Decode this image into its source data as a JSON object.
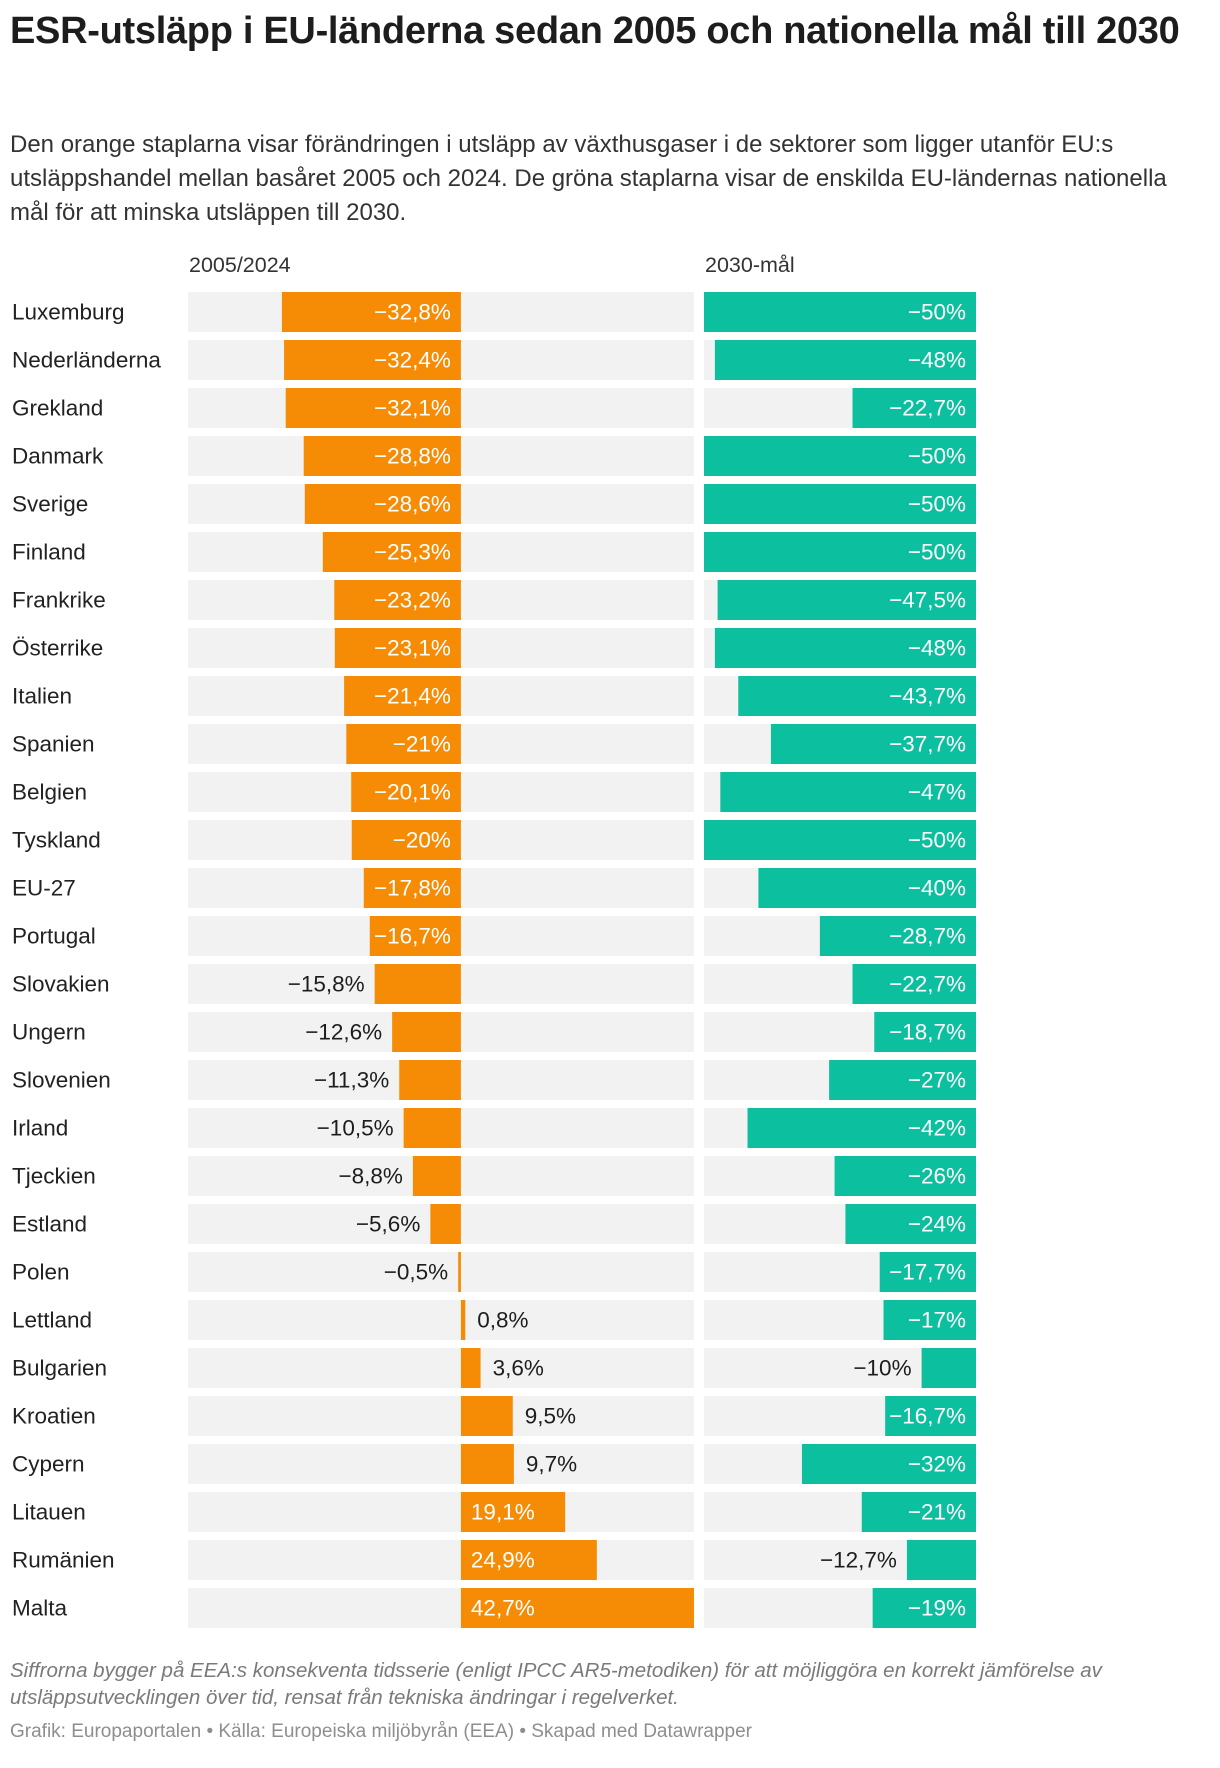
{
  "header": {
    "title": "ESR-utsläpp i EU-länderna sedan 2005 och nationella mål till 2030",
    "description": "Den orange staplarna visar förändringen i utsläpp av växthusgaser i de sektorer som ligger utanför EU:s utsläppshandel mellan basåret 2005 och 2024. De gröna staplarna visar de enskilda EU-ländernas nationella mål för att minska utsläppen till 2030."
  },
  "footer": {
    "note": "Siffrorna bygger på EEA:s konsekventa tidsserie (enligt IPCC AR5-metodiken) för att möjliggöra en korrekt jämförelse av utsläppsutvecklingen över tid, rensat från tekniska ändringar i regelverket.",
    "credits": "Grafik: Europaportalen • Källa: Europeiska miljöbyrån (EEA) • Skapad med Datawrapper"
  },
  "colors": {
    "change_bar": "#f68c06",
    "target_bar": "#0bbf9f",
    "track": "#f2f2f2",
    "label_inside": "#ffffff",
    "label_outside": "#1d1d1d"
  },
  "chart_data": {
    "type": "bar",
    "orientation": "horizontal",
    "categories": [
      "Luxemburg",
      "Nederländerna",
      "Grekland",
      "Danmark",
      "Sverige",
      "Finland",
      "Frankrike",
      "Österrike",
      "Italien",
      "Spanien",
      "Belgien",
      "Tyskland",
      "EU-27",
      "Portugal",
      "Slovakien",
      "Ungern",
      "Slovenien",
      "Irland",
      "Tjeckien",
      "Estland",
      "Polen",
      "Lettland",
      "Bulgarien",
      "Kroatien",
      "Cypern",
      "Litauen",
      "Rumänien",
      "Malta"
    ],
    "series": [
      {
        "name": "2005/2024",
        "unit": "%",
        "xlim": [
          -50,
          42.7
        ],
        "values": [
          -32.8,
          -32.4,
          -32.1,
          -28.8,
          -28.6,
          -25.3,
          -23.2,
          -23.1,
          -21.4,
          -21,
          -20.1,
          -20,
          -17.8,
          -16.7,
          -15.8,
          -12.6,
          -11.3,
          -10.5,
          -8.8,
          -5.6,
          -0.5,
          0.8,
          3.6,
          9.5,
          9.7,
          19.1,
          24.9,
          42.7
        ],
        "labels": [
          "−32,8%",
          "−32,4%",
          "−32,1%",
          "−28,8%",
          "−28,6%",
          "−25,3%",
          "−23,2%",
          "−23,1%",
          "−21,4%",
          "−21%",
          "−20,1%",
          "−20%",
          "−17,8%",
          "−16,7%",
          "−15,8%",
          "−12,6%",
          "−11,3%",
          "−10,5%",
          "−8,8%",
          "−5,6%",
          "−0,5%",
          "0,8%",
          "3,6%",
          "9,5%",
          "9,7%",
          "19,1%",
          "24,9%",
          "42,7%"
        ]
      },
      {
        "name": "2030-mål",
        "unit": "%",
        "xlim": [
          -50,
          0
        ],
        "values": [
          -50,
          -48,
          -22.7,
          -50,
          -50,
          -50,
          -47.5,
          -48,
          -43.7,
          -37.7,
          -47,
          -50,
          -40,
          -28.7,
          -22.7,
          -18.7,
          -27,
          -42,
          -26,
          -24,
          -17.7,
          -17,
          -10,
          -16.7,
          -32,
          -21,
          -12.7,
          -19
        ],
        "labels": [
          "−50%",
          "−48%",
          "−22,7%",
          "−50%",
          "−50%",
          "−50%",
          "−47,5%",
          "−48%",
          "−43,7%",
          "−37,7%",
          "−47%",
          "−50%",
          "−40%",
          "−28,7%",
          "−22,7%",
          "−18,7%",
          "−27%",
          "−42%",
          "−26%",
          "−24%",
          "−17,7%",
          "−17%",
          "−10%",
          "−16,7%",
          "−32%",
          "−21%",
          "−12,7%",
          "−19%"
        ]
      }
    ]
  }
}
